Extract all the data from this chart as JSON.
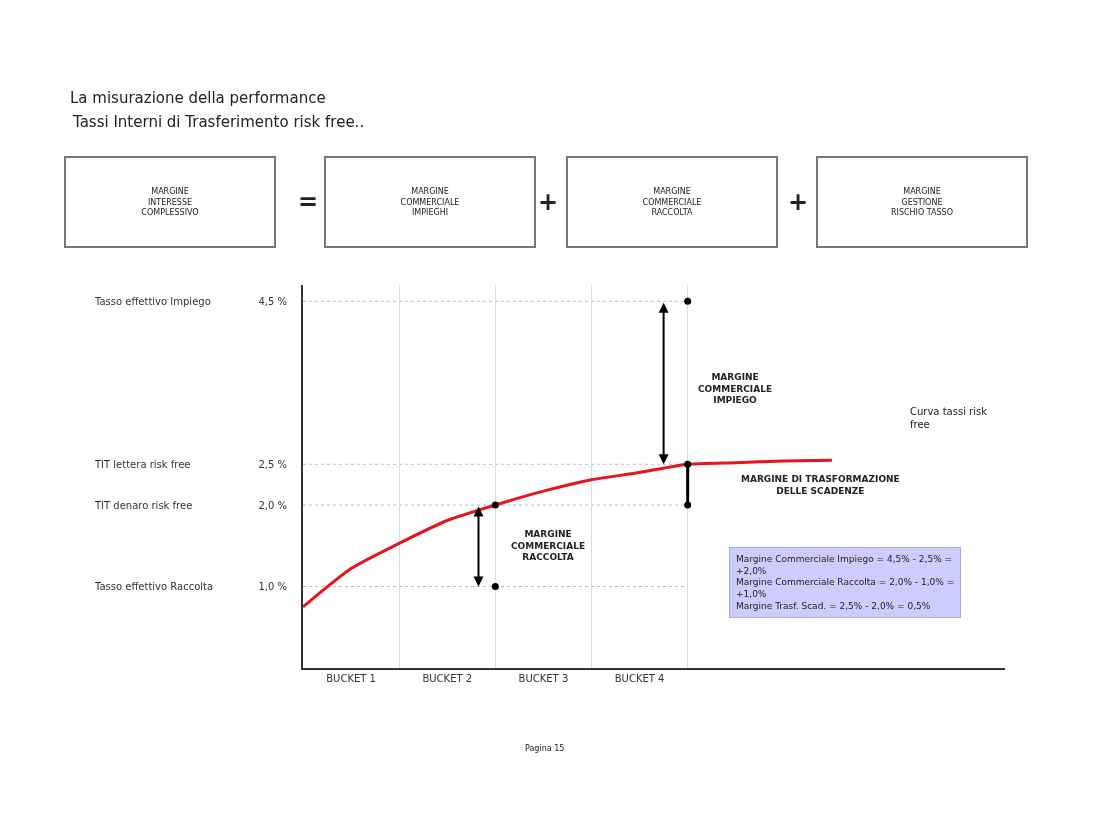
{
  "chart_data": {
    "type": "line",
    "title": "La misurazione della performance",
    "subtitle": "Tassi Interni di Trasferimento risk free..",
    "categories": [
      null,
      "BUCKET 1",
      null,
      "BUCKET 2",
      null,
      "BUCKET 3",
      null,
      "BUCKET 4",
      null,
      null,
      null,
      null,
      null,
      null,
      null
    ],
    "series": [
      {
        "color": "#e8141c",
        "marker": "none",
        "values": [
          0.75,
          1.22,
          1.53,
          1.81,
          2.0,
          2.17,
          2.31,
          2.4,
          2.5,
          2.52,
          2.54,
          2.55,
          null,
          null,
          null
        ]
      },
      {
        "type": "scatter",
        "color": "#000000",
        "marker": "circle",
        "values": [
          null,
          null,
          null,
          null,
          2.0,
          null,
          null,
          null,
          4.5,
          null,
          null,
          null,
          null,
          null,
          null
        ]
      },
      {
        "type": "scatter",
        "color": "#000000",
        "marker": "circle",
        "values": [
          null,
          null,
          null,
          null,
          1.0,
          null,
          null,
          null,
          2.5,
          null,
          null,
          null,
          null,
          null,
          null
        ]
      },
      {
        "type": "scatter",
        "color": "#000000",
        "marker": "circle",
        "values": [
          null,
          null,
          null,
          null,
          null,
          null,
          null,
          null,
          2.0,
          null,
          null,
          null,
          null,
          null,
          null
        ]
      }
    ],
    "ylim": [
      0,
      4.7
    ],
    "yticks": [
      {
        "value": 1.0,
        "label": "1,0 %"
      },
      {
        "value": 2.0,
        "label": "2,0 %"
      },
      {
        "value": 2.5,
        "label": "2,5 %"
      },
      {
        "value": 4.5,
        "label": "4,5 %"
      }
    ],
    "ref_lines": [
      {
        "axis": "y",
        "value": 4.5,
        "color": "#bbbbbb",
        "line_style": "dotted"
      },
      {
        "axis": "y",
        "value": 2.5,
        "color": "#bbbbbb",
        "line_style": "dotted"
      },
      {
        "axis": "y",
        "value": 2.0,
        "color": "#bbbbbb",
        "line_style": "dotted"
      },
      {
        "axis": "y",
        "value": 1.0,
        "color": "#bbbbbb",
        "line_style": "dotted"
      }
    ],
    "annotations": [
      "MARGINE\nCOMMERCIALE\nIMPIEGO",
      "MARGINE DI TRASFORMAZIONE\nDELLE SCADENZE",
      "MARGINE\nCOMMERCIALE\nRACCOLTA",
      "Curva tassi risk\nfree",
      "Margine Commerciale Impiego = 4,5% - 2,5% =\n+2,0%\nMargine Commerciale Raccolta = 2,0% - 1,0% =\n+1,0%\nMargine Trasf. Scad. = 2,5% - 2,0% = 0,5%",
      "MARGINE\nINTERESSE\nCOMPLESSIVO",
      "=",
      "MARGINE\nCOMMERCIALE\nIMPIEGHI",
      "+",
      "MARGINE\nCOMMERCIALE\nRACCOLTA",
      "+",
      "MARGINE\nGESTIONE\nRISCHIO TASSO",
      "Pagina 15",
      "Tasso effettivo Impiego",
      "TIT lettera risk free",
      "TIT denaro risk free",
      "Tasso effettivo Raccolta"
    ],
    "grid": "x"
  }
}
